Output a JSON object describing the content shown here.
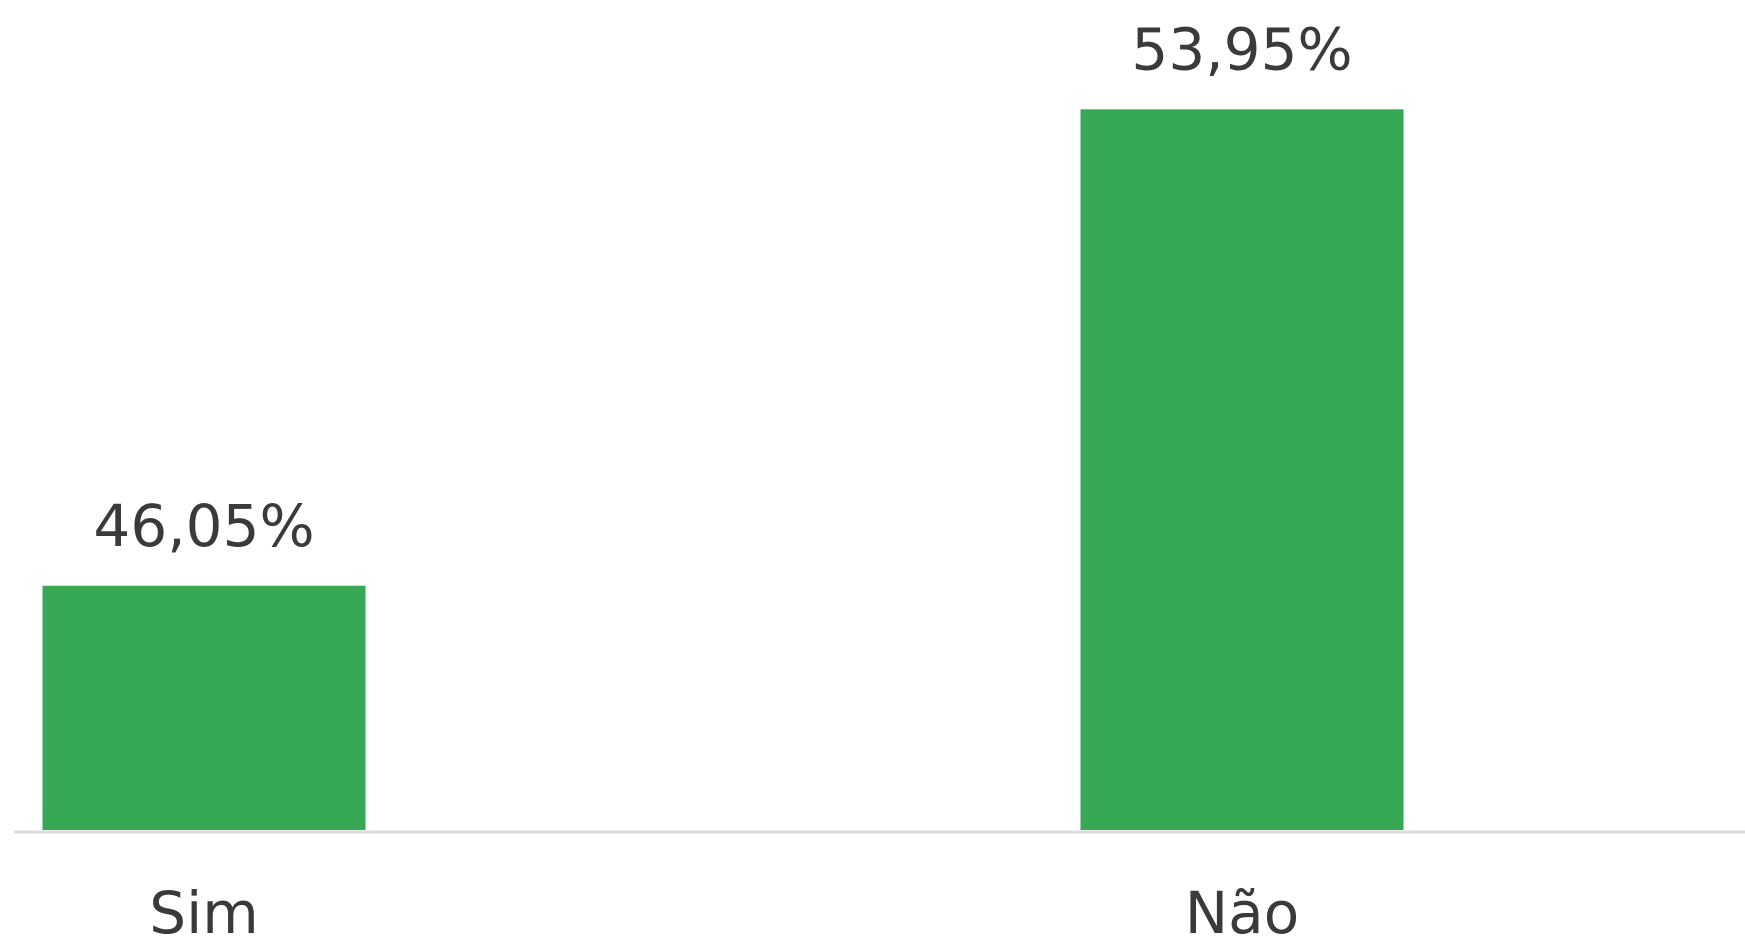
{
  "chart_data": {
    "type": "bar",
    "categories": [
      "Sim",
      "Não"
    ],
    "values": [
      46.05,
      53.95
    ],
    "value_labels": [
      "46,05%",
      "53,95%"
    ],
    "color": "#37a854",
    "ylim": [
      42,
      55
    ]
  }
}
